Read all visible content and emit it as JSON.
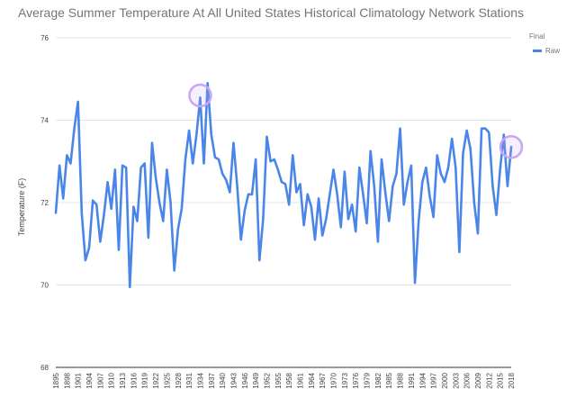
{
  "chart_data": {
    "type": "line",
    "title": "Average Summer Temperature At All United States Historical Climatology Network Stations",
    "xlabel": "",
    "ylabel": "Temperature (F)",
    "ylim": [
      68,
      76
    ],
    "yticks": [
      68,
      70,
      72,
      74,
      76
    ],
    "xticks": [
      "1895",
      "1898",
      "1901",
      "1904",
      "1907",
      "1910",
      "1913",
      "1916",
      "1919",
      "1922",
      "1925",
      "1928",
      "1931",
      "1934",
      "1937",
      "1940",
      "1943",
      "1946",
      "1949",
      "1952",
      "1955",
      "1958",
      "1961",
      "1964",
      "1967",
      "1970",
      "1973",
      "1976",
      "1979",
      "1982",
      "1985",
      "1988",
      "1991",
      "1994",
      "1997",
      "2000",
      "2003",
      "2006",
      "2009",
      "2012",
      "2015",
      "2018"
    ],
    "grid": true,
    "legend": {
      "title": "Final",
      "position": "right"
    },
    "series": [
      {
        "name": "Raw",
        "color": "#4a86e8",
        "x": [
          1895,
          1896,
          1897,
          1898,
          1899,
          1900,
          1901,
          1902,
          1903,
          1904,
          1905,
          1906,
          1907,
          1908,
          1909,
          1910,
          1911,
          1912,
          1913,
          1914,
          1915,
          1916,
          1917,
          1918,
          1919,
          1920,
          1921,
          1922,
          1923,
          1924,
          1925,
          1926,
          1927,
          1928,
          1929,
          1930,
          1931,
          1932,
          1933,
          1934,
          1935,
          1936,
          1937,
          1938,
          1939,
          1940,
          1941,
          1942,
          1943,
          1944,
          1945,
          1946,
          1947,
          1948,
          1949,
          1950,
          1951,
          1952,
          1953,
          1954,
          1955,
          1956,
          1957,
          1958,
          1959,
          1960,
          1961,
          1962,
          1963,
          1964,
          1965,
          1966,
          1967,
          1968,
          1969,
          1970,
          1971,
          1972,
          1973,
          1974,
          1975,
          1976,
          1977,
          1978,
          1979,
          1980,
          1981,
          1982,
          1983,
          1984,
          1985,
          1986,
          1987,
          1988,
          1989,
          1990,
          1991,
          1992,
          1993,
          1994,
          1995,
          1996,
          1997,
          1998,
          1999,
          2000,
          2001,
          2002,
          2003,
          2004,
          2005,
          2006,
          2007,
          2008,
          2009,
          2010,
          2011,
          2012,
          2013,
          2014,
          2015,
          2016,
          2017,
          2018
        ],
        "values": [
          71.75,
          72.9,
          72.1,
          73.15,
          72.95,
          73.8,
          74.45,
          71.75,
          70.6,
          70.9,
          72.05,
          71.95,
          71.05,
          71.7,
          72.5,
          71.85,
          72.8,
          70.85,
          72.9,
          72.85,
          69.95,
          71.9,
          71.55,
          72.85,
          72.95,
          71.15,
          73.45,
          72.6,
          72.0,
          71.55,
          72.8,
          72.0,
          70.35,
          71.35,
          71.85,
          73.05,
          73.75,
          72.95,
          73.65,
          74.55,
          72.95,
          74.9,
          73.65,
          73.1,
          73.05,
          72.7,
          72.55,
          72.25,
          73.45,
          72.4,
          71.1,
          71.8,
          72.2,
          72.2,
          73.05,
          70.6,
          71.6,
          73.6,
          73.0,
          73.05,
          72.8,
          72.5,
          72.45,
          71.95,
          73.15,
          72.25,
          72.45,
          71.45,
          72.2,
          71.9,
          71.1,
          72.1,
          71.2,
          71.6,
          72.2,
          72.8,
          72.2,
          71.4,
          72.75,
          71.6,
          71.95,
          71.3,
          72.85,
          72.2,
          71.5,
          73.25,
          72.4,
          71.05,
          73.05,
          72.25,
          71.55,
          72.4,
          72.7,
          73.8,
          71.95,
          72.5,
          72.9,
          70.05,
          71.55,
          72.5,
          72.85,
          72.15,
          71.65,
          73.15,
          72.7,
          72.5,
          72.85,
          73.55,
          72.85,
          70.8,
          73.2,
          73.75,
          73.3,
          72.0,
          71.25,
          73.8,
          73.8,
          73.7,
          72.4,
          71.7,
          72.8,
          73.65,
          72.4,
          73.35
        ]
      }
    ],
    "annotations": [
      {
        "type": "circle-highlight",
        "year": 1934,
        "value": 74.6
      },
      {
        "type": "circle-highlight",
        "year": 2018,
        "value": 73.35
      }
    ]
  }
}
